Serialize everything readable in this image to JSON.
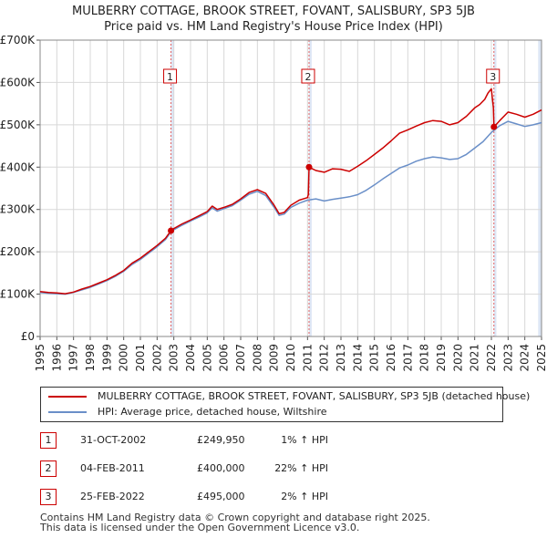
{
  "chart_data": {
    "type": "line",
    "title": "MULBERRY COTTAGE, BROOK STREET, FOVANT, SALISBURY, SP3 5JB",
    "subtitle": "Price paid vs. HM Land Registry's House Price Index (HPI)",
    "xlabel": "",
    "ylabel": "",
    "xlim": [
      1995,
      2025
    ],
    "ylim": [
      0,
      700000
    ],
    "x_ticks": [
      "1995",
      "1996",
      "1997",
      "1998",
      "1999",
      "2000",
      "2001",
      "2002",
      "2003",
      "2004",
      "2005",
      "2006",
      "2007",
      "2008",
      "2009",
      "2010",
      "2011",
      "2012",
      "2013",
      "2014",
      "2015",
      "2016",
      "2017",
      "2018",
      "2019",
      "2020",
      "2021",
      "2022",
      "2023",
      "2024",
      "2025"
    ],
    "y_ticks": [
      {
        "value": 0,
        "label": "£0"
      },
      {
        "value": 100000,
        "label": "£100K"
      },
      {
        "value": 200000,
        "label": "£200K"
      },
      {
        "value": 300000,
        "label": "£300K"
      },
      {
        "value": 400000,
        "label": "£400K"
      },
      {
        "value": 500000,
        "label": "£500K"
      },
      {
        "value": 600000,
        "label": "£600K"
      },
      {
        "value": 700000,
        "label": "£700K"
      }
    ],
    "grid": true,
    "series": [
      {
        "name": "MULBERRY COTTAGE, BROOK STREET, FOVANT, SALISBURY, SP3 5JB (detached house)",
        "color": "#cc0000",
        "points": [
          [
            1995,
            106000
          ],
          [
            1995.5,
            104000
          ],
          [
            1996,
            103000
          ],
          [
            1996.5,
            101000
          ],
          [
            1997,
            105000
          ],
          [
            1997.5,
            112000
          ],
          [
            1998,
            118000
          ],
          [
            1998.5,
            126000
          ],
          [
            1999,
            134000
          ],
          [
            1999.5,
            144000
          ],
          [
            2000,
            156000
          ],
          [
            2000.5,
            173000
          ],
          [
            2001,
            185000
          ],
          [
            2001.5,
            200000
          ],
          [
            2002,
            215000
          ],
          [
            2002.5,
            232000
          ],
          [
            2002.83,
            249950
          ],
          [
            2003,
            255000
          ],
          [
            2003.5,
            266000
          ],
          [
            2004,
            275000
          ],
          [
            2004.5,
            285000
          ],
          [
            2005,
            295000
          ],
          [
            2005.3,
            308000
          ],
          [
            2005.6,
            300000
          ],
          [
            2006,
            305000
          ],
          [
            2006.5,
            312000
          ],
          [
            2007,
            325000
          ],
          [
            2007.5,
            340000
          ],
          [
            2008,
            347000
          ],
          [
            2008.5,
            338000
          ],
          [
            2009,
            310000
          ],
          [
            2009.3,
            290000
          ],
          [
            2009.6,
            293000
          ],
          [
            2010,
            310000
          ],
          [
            2010.5,
            322000
          ],
          [
            2011,
            328000
          ],
          [
            2011.05,
            335000
          ],
          [
            2011.09,
            400000
          ],
          [
            2011.5,
            392000
          ],
          [
            2012,
            388000
          ],
          [
            2012.5,
            396000
          ],
          [
            2013,
            395000
          ],
          [
            2013.5,
            390000
          ],
          [
            2014,
            402000
          ],
          [
            2014.5,
            415000
          ],
          [
            2015,
            430000
          ],
          [
            2015.5,
            445000
          ],
          [
            2016,
            462000
          ],
          [
            2016.5,
            480000
          ],
          [
            2017,
            488000
          ],
          [
            2017.5,
            497000
          ],
          [
            2018,
            505000
          ],
          [
            2018.5,
            510000
          ],
          [
            2019,
            508000
          ],
          [
            2019.5,
            500000
          ],
          [
            2020,
            505000
          ],
          [
            2020.5,
            520000
          ],
          [
            2021,
            540000
          ],
          [
            2021.3,
            548000
          ],
          [
            2021.6,
            560000
          ],
          [
            2021.8,
            575000
          ],
          [
            2022,
            585000
          ],
          [
            2022.12,
            540000
          ],
          [
            2022.15,
            495000
          ],
          [
            2022.5,
            510000
          ],
          [
            2023,
            530000
          ],
          [
            2023.5,
            525000
          ],
          [
            2024,
            518000
          ],
          [
            2024.5,
            525000
          ],
          [
            2025,
            535000
          ]
        ]
      },
      {
        "name": "HPI: Average price, detached house, Wiltshire",
        "color": "#6a8fc8",
        "points": [
          [
            1995,
            104000
          ],
          [
            1995.5,
            102000
          ],
          [
            1996,
            101000
          ],
          [
            1996.5,
            100000
          ],
          [
            1997,
            104000
          ],
          [
            1997.5,
            110000
          ],
          [
            1998,
            116000
          ],
          [
            1998.5,
            124000
          ],
          [
            1999,
            132000
          ],
          [
            1999.5,
            142000
          ],
          [
            2000,
            154000
          ],
          [
            2000.5,
            170000
          ],
          [
            2001,
            182000
          ],
          [
            2001.5,
            197000
          ],
          [
            2002,
            212000
          ],
          [
            2002.5,
            229000
          ],
          [
            2002.83,
            247000
          ],
          [
            2003,
            252000
          ],
          [
            2003.5,
            263000
          ],
          [
            2004,
            273000
          ],
          [
            2004.5,
            282000
          ],
          [
            2005,
            292000
          ],
          [
            2005.3,
            304000
          ],
          [
            2005.6,
            296000
          ],
          [
            2006,
            302000
          ],
          [
            2006.5,
            309000
          ],
          [
            2007,
            322000
          ],
          [
            2007.5,
            336000
          ],
          [
            2008,
            343000
          ],
          [
            2008.5,
            333000
          ],
          [
            2009,
            305000
          ],
          [
            2009.3,
            286000
          ],
          [
            2009.6,
            289000
          ],
          [
            2010,
            305000
          ],
          [
            2010.5,
            315000
          ],
          [
            2011,
            322000
          ],
          [
            2011.5,
            325000
          ],
          [
            2012,
            320000
          ],
          [
            2012.5,
            324000
          ],
          [
            2013,
            327000
          ],
          [
            2013.5,
            330000
          ],
          [
            2014,
            335000
          ],
          [
            2014.5,
            345000
          ],
          [
            2015,
            358000
          ],
          [
            2015.5,
            372000
          ],
          [
            2016,
            385000
          ],
          [
            2016.5,
            398000
          ],
          [
            2017,
            405000
          ],
          [
            2017.5,
            414000
          ],
          [
            2018,
            420000
          ],
          [
            2018.5,
            424000
          ],
          [
            2019,
            422000
          ],
          [
            2019.5,
            418000
          ],
          [
            2020,
            420000
          ],
          [
            2020.5,
            430000
          ],
          [
            2021,
            445000
          ],
          [
            2021.5,
            460000
          ],
          [
            2022,
            482000
          ],
          [
            2022.5,
            498000
          ],
          [
            2023,
            508000
          ],
          [
            2023.5,
            502000
          ],
          [
            2024,
            496000
          ],
          [
            2024.5,
            500000
          ],
          [
            2025,
            505000
          ]
        ]
      }
    ],
    "events": [
      {
        "label": "1",
        "x": 2002.83,
        "price": 249950,
        "date": "31-OCT-2002",
        "price_label": "£249,950",
        "hpi_label": "1% ↑ HPI"
      },
      {
        "label": "2",
        "x": 2011.09,
        "price": 400000,
        "date": "04-FEB-2011",
        "price_label": "£400,000",
        "hpi_label": "22% ↑ HPI"
      },
      {
        "label": "3",
        "x": 2022.15,
        "price": 495000,
        "date": "25-FEB-2022",
        "price_label": "£495,000",
        "hpi_label": "2% ↑ HPI"
      }
    ],
    "shaded_regions": [
      [
        2002.83,
        2003.0
      ],
      [
        2011.09,
        2011.25
      ],
      [
        2022.15,
        2022.3
      ],
      [
        2024.8,
        2025
      ]
    ]
  },
  "legend": {
    "property_label": "MULBERRY COTTAGE, BROOK STREET, FOVANT, SALISBURY, SP3 5JB (detached house)",
    "hpi_label": "HPI: Average price, detached house, Wiltshire",
    "property_color": "#cc0000",
    "hpi_color": "#6a8fc8"
  },
  "footer": {
    "line1": "Contains HM Land Registry data © Crown copyright and database right 2025.",
    "line2": "This data is licensed under the Open Government Licence v3.0."
  }
}
